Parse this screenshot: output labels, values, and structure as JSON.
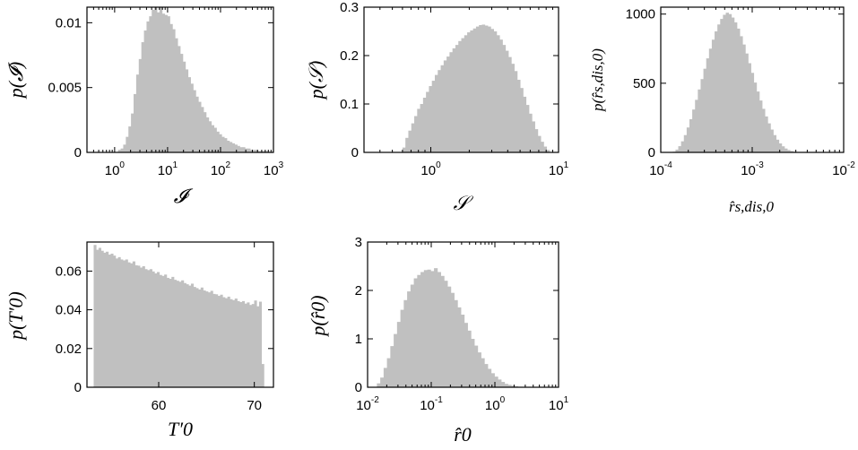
{
  "chart_data": [
    {
      "type": "bar",
      "xscale": "log",
      "xlim": [
        0.3,
        1000
      ],
      "ylim": [
        0,
        0.0112
      ],
      "xlabel": "𝓘",
      "ylabel": "p(𝓘)",
      "xticks": [
        {
          "base": "10",
          "exp": "0"
        },
        {
          "base": "10",
          "exp": "1"
        },
        {
          "base": "10",
          "exp": "2"
        },
        {
          "base": "10",
          "exp": "3"
        }
      ],
      "xtick_values": [
        1,
        10,
        100,
        1000
      ],
      "yticks": [
        "0",
        "0.005",
        "0.01"
      ],
      "ytick_values": [
        0,
        0.005,
        0.01
      ],
      "bin_range": [
        0.3,
        1000
      ],
      "values": [
        0,
        0,
        0,
        0,
        0,
        0,
        0,
        0,
        0,
        0,
        0,
        0,
        0.0002,
        0.0003,
        0.0006,
        0.0012,
        0.002,
        0.003,
        0.0045,
        0.006,
        0.0072,
        0.0085,
        0.0094,
        0.0101,
        0.0105,
        0.011,
        0.0112,
        0.0108,
        0.0112,
        0.0107,
        0.0106,
        0.0105,
        0.0099,
        0.0095,
        0.0088,
        0.0082,
        0.0076,
        0.007,
        0.0064,
        0.0058,
        0.0053,
        0.0048,
        0.0043,
        0.0039,
        0.0035,
        0.0031,
        0.0027,
        0.0024,
        0.0021,
        0.0019,
        0.0016,
        0.0014,
        0.0012,
        0.0011,
        0.0009,
        0.0008,
        0.0007,
        0.0006,
        0.0005,
        0.0004,
        0.0004,
        0.0003,
        0.0003,
        0.0002,
        0.0002,
        0.0002,
        0.0001,
        0.0001,
        0.0001,
        0.0001,
        5e-05,
        5e-05
      ]
    },
    {
      "type": "bar",
      "xscale": "log",
      "xlim": [
        0.3,
        10
      ],
      "ylim": [
        0,
        0.3
      ],
      "xlabel": "𝒮",
      "ylabel": "p(𝒮)",
      "xticks": [
        {
          "base": "10",
          "exp": "0"
        },
        {
          "base": "10",
          "exp": "1"
        }
      ],
      "xtick_values": [
        1,
        10
      ],
      "yticks": [
        "0",
        "0.1",
        "0.2",
        "0.3"
      ],
      "ytick_values": [
        0,
        0.1,
        0.2,
        0.3
      ],
      "bin_range": [
        0.6,
        8.5
      ],
      "values": [
        0.01,
        0.03,
        0.045,
        0.06,
        0.075,
        0.09,
        0.1,
        0.113,
        0.125,
        0.137,
        0.148,
        0.16,
        0.17,
        0.18,
        0.19,
        0.198,
        0.207,
        0.215,
        0.222,
        0.23,
        0.236,
        0.242,
        0.248,
        0.252,
        0.256,
        0.26,
        0.263,
        0.264,
        0.262,
        0.26,
        0.255,
        0.25,
        0.242,
        0.233,
        0.222,
        0.21,
        0.197,
        0.183,
        0.168,
        0.15,
        0.133,
        0.115,
        0.098,
        0.08,
        0.064,
        0.048,
        0.034,
        0.022,
        0.012,
        0.005
      ]
    },
    {
      "type": "bar",
      "xscale": "log",
      "xlim": [
        0.0001,
        0.01
      ],
      "ylim": [
        0,
        1050
      ],
      "xlabel": "r̂s,dis,0",
      "ylabel": "p(r̂s,dis,0)",
      "xticks": [
        {
          "base": "10",
          "exp": "-4"
        },
        {
          "base": "10",
          "exp": "-3"
        },
        {
          "base": "10",
          "exp": "-2"
        }
      ],
      "xtick_values": [
        0.0001,
        0.001,
        0.01
      ],
      "yticks": [
        "0",
        "500",
        "1000"
      ],
      "ytick_values": [
        0,
        500,
        1000
      ],
      "bin_range": [
        0.000135,
        0.0032
      ],
      "values": [
        5,
        20,
        45,
        80,
        125,
        180,
        240,
        310,
        380,
        455,
        530,
        605,
        680,
        750,
        815,
        875,
        925,
        965,
        995,
        1010,
        1000,
        975,
        940,
        895,
        840,
        780,
        715,
        645,
        575,
        505,
        440,
        375,
        315,
        260,
        210,
        165,
        125,
        92,
        65,
        44,
        28,
        17,
        10,
        5,
        2
      ]
    },
    {
      "type": "bar",
      "xscale": "linear",
      "xlim": [
        52.5,
        72
      ],
      "ylim": [
        0,
        0.075
      ],
      "xlabel": "T′0",
      "ylabel": "p(T′0)",
      "xticks": [
        {
          "base": "60",
          "exp": ""
        },
        {
          "base": "70",
          "exp": ""
        }
      ],
      "xtick_values": [
        60,
        70
      ],
      "yticks": [
        "0",
        "0.02",
        "0.04",
        "0.06"
      ],
      "ytick_values": [
        0,
        0.02,
        0.04,
        0.06
      ],
      "bin_range": [
        53.2,
        71
      ],
      "values": [
        0.0735,
        0.071,
        0.072,
        0.0705,
        0.0695,
        0.07,
        0.0685,
        0.069,
        0.068,
        0.0665,
        0.0672,
        0.066,
        0.0655,
        0.066,
        0.0645,
        0.064,
        0.065,
        0.063,
        0.0628,
        0.0618,
        0.0625,
        0.061,
        0.0605,
        0.061,
        0.0598,
        0.0588,
        0.0595,
        0.058,
        0.0575,
        0.0582,
        0.0565,
        0.056,
        0.057,
        0.0555,
        0.055,
        0.0545,
        0.0552,
        0.0538,
        0.0532,
        0.0525,
        0.0535,
        0.0518,
        0.0512,
        0.0505,
        0.0515,
        0.05,
        0.0495,
        0.049,
        0.0498,
        0.0482,
        0.048,
        0.0472,
        0.0478,
        0.0465,
        0.046,
        0.0468,
        0.0455,
        0.045,
        0.0458,
        0.0445,
        0.044,
        0.0445,
        0.0432,
        0.0438,
        0.0425,
        0.043,
        0.0448,
        0.0418,
        0.0442,
        0.012
      ]
    },
    {
      "type": "bar",
      "xscale": "log",
      "xlim": [
        0.01,
        10
      ],
      "ylim": [
        0,
        3
      ],
      "xlabel": "r̂0",
      "ylabel": "p(r̂0)",
      "xticks": [
        {
          "base": "10",
          "exp": "-2"
        },
        {
          "base": "10",
          "exp": "-1"
        },
        {
          "base": "10",
          "exp": "0"
        },
        {
          "base": "10",
          "exp": "1"
        }
      ],
      "xtick_values": [
        0.01,
        0.1,
        1,
        10
      ],
      "yticks": [
        "0",
        "1",
        "2",
        "3"
      ],
      "ytick_values": [
        0,
        1,
        2,
        3
      ],
      "bin_range": [
        0.014,
        2.6
      ],
      "values": [
        0.08,
        0.2,
        0.4,
        0.6,
        0.85,
        1.1,
        1.35,
        1.6,
        1.8,
        1.98,
        2.12,
        2.25,
        2.32,
        2.38,
        2.42,
        2.43,
        2.4,
        2.46,
        2.38,
        2.3,
        2.2,
        2.08,
        1.95,
        1.8,
        1.65,
        1.5,
        1.33,
        1.17,
        1.0,
        0.86,
        0.72,
        0.6,
        0.48,
        0.38,
        0.29,
        0.22,
        0.16,
        0.11,
        0.07,
        0.05,
        0.03,
        0.02,
        0.01
      ]
    }
  ]
}
